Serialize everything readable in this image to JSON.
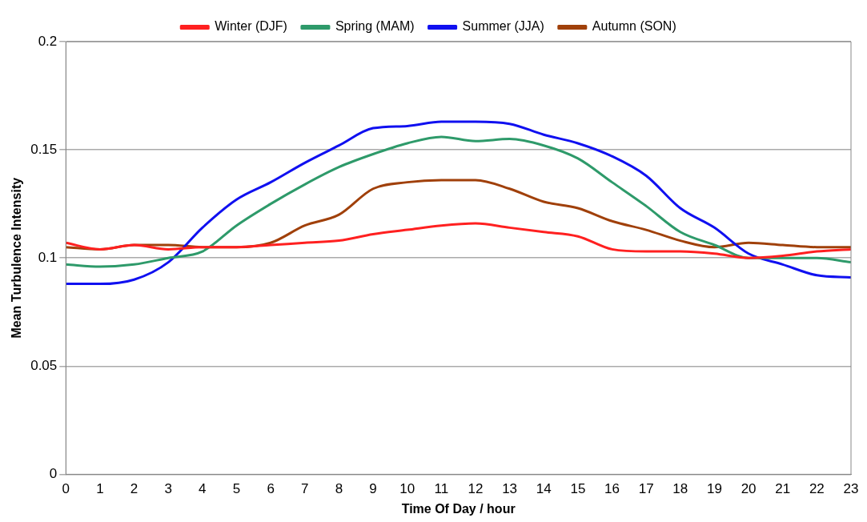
{
  "chart_data": {
    "type": "line",
    "xlabel": "Time Of Day / hour",
    "ylabel": "Mean Turbulence Intensity",
    "x": [
      0,
      1,
      2,
      3,
      4,
      5,
      6,
      7,
      8,
      9,
      10,
      11,
      12,
      13,
      14,
      15,
      16,
      17,
      18,
      19,
      20,
      21,
      22,
      23
    ],
    "series": [
      {
        "name": "Winter (DJF)",
        "color": "#ff2020",
        "values": [
          0.107,
          0.104,
          0.106,
          0.104,
          0.105,
          0.105,
          0.106,
          0.107,
          0.108,
          0.111,
          0.113,
          0.115,
          0.116,
          0.114,
          0.112,
          0.11,
          0.104,
          0.103,
          0.103,
          0.102,
          0.1,
          0.101,
          0.103,
          0.104
        ]
      },
      {
        "name": "Spring (MAM)",
        "color": "#2e9a6a",
        "values": [
          0.097,
          0.096,
          0.097,
          0.1,
          0.103,
          0.115,
          0.125,
          0.134,
          0.142,
          0.148,
          0.153,
          0.156,
          0.154,
          0.155,
          0.152,
          0.146,
          0.135,
          0.124,
          0.112,
          0.106,
          0.1,
          0.1,
          0.1,
          0.098
        ]
      },
      {
        "name": "Summer (JJA)",
        "color": "#1010f0",
        "values": [
          0.088,
          0.088,
          0.09,
          0.098,
          0.114,
          0.127,
          0.135,
          0.144,
          0.152,
          0.16,
          0.161,
          0.163,
          0.163,
          0.162,
          0.157,
          0.153,
          0.147,
          0.138,
          0.123,
          0.114,
          0.102,
          0.097,
          0.092,
          0.091
        ]
      },
      {
        "name": "Autumn (SON)",
        "color": "#a0400a",
        "values": [
          0.105,
          0.104,
          0.106,
          0.106,
          0.105,
          0.105,
          0.107,
          0.115,
          0.12,
          0.132,
          0.135,
          0.136,
          0.136,
          0.132,
          0.126,
          0.123,
          0.117,
          0.113,
          0.108,
          0.105,
          0.107,
          0.106,
          0.105,
          0.105
        ]
      }
    ],
    "xlim": [
      0,
      23
    ],
    "xticks": [
      0,
      1,
      2,
      3,
      4,
      5,
      6,
      7,
      8,
      9,
      10,
      11,
      12,
      13,
      14,
      15,
      16,
      17,
      18,
      19,
      20,
      21,
      22,
      23
    ],
    "ylim": [
      0,
      0.2
    ],
    "yticks": [
      0,
      0.05,
      0.1,
      0.15,
      0.2
    ],
    "grid": "y",
    "legend": "top",
    "marker": "none",
    "line_style": "solid"
  }
}
